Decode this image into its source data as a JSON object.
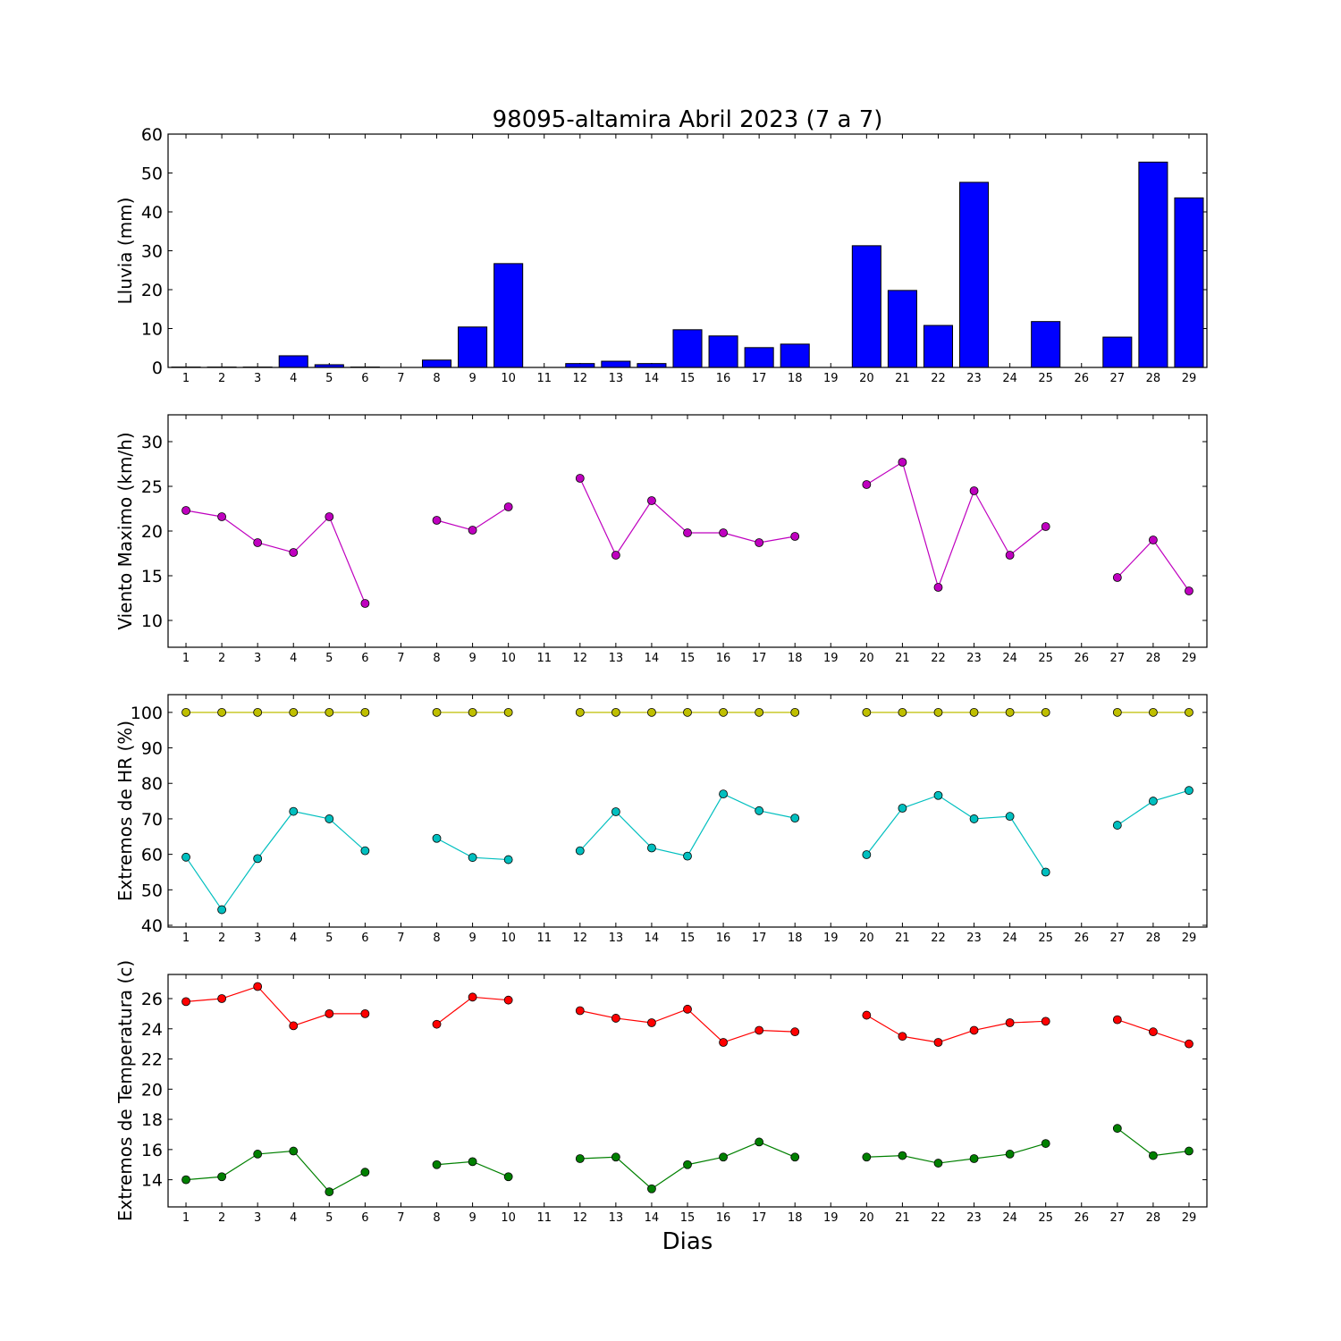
{
  "figure": {
    "title": "98095-altamira Abril 2023  (7 a 7)",
    "xlabel": "Dias"
  },
  "chart_data": [
    {
      "type": "bar",
      "ylabel": "Lluvia (mm)",
      "ylim": [
        0,
        60
      ],
      "yticks": [
        0,
        10,
        20,
        30,
        40,
        50,
        60
      ],
      "xlim": [
        0.5,
        29.5
      ],
      "xticks": [
        1,
        2,
        3,
        4,
        5,
        6,
        7,
        8,
        9,
        10,
        11,
        12,
        13,
        14,
        15,
        16,
        17,
        18,
        19,
        20,
        21,
        22,
        23,
        24,
        25,
        26,
        27,
        28,
        29
      ],
      "x": [
        1,
        2,
        3,
        4,
        5,
        6,
        7,
        8,
        9,
        10,
        11,
        12,
        13,
        14,
        15,
        16,
        17,
        18,
        19,
        20,
        21,
        22,
        23,
        24,
        25,
        26,
        27,
        28,
        29
      ],
      "series": [
        {
          "color": "#0000ff",
          "values": [
            0.1,
            0.1,
            0.1,
            3.0,
            0.7,
            0.1,
            0,
            1.9,
            10.4,
            26.7,
            0,
            1.0,
            1.6,
            1.0,
            9.7,
            8.1,
            5.1,
            6.0,
            0,
            31.3,
            19.8,
            10.8,
            47.6,
            0,
            11.8,
            0,
            7.8,
            52.8,
            43.6
          ]
        }
      ]
    },
    {
      "type": "line",
      "ylabel": "Viento Maximo (km/h)",
      "ylim": [
        7,
        33
      ],
      "yticks": [
        10,
        15,
        20,
        25,
        30
      ],
      "xlim": [
        0.5,
        29.5
      ],
      "xticks": [
        1,
        2,
        3,
        4,
        5,
        6,
        7,
        8,
        9,
        10,
        11,
        12,
        13,
        14,
        15,
        16,
        17,
        18,
        19,
        20,
        21,
        22,
        23,
        24,
        25,
        26,
        27,
        28,
        29
      ],
      "x": [
        1,
        2,
        3,
        4,
        5,
        6,
        7,
        8,
        9,
        10,
        11,
        12,
        13,
        14,
        15,
        16,
        17,
        18,
        19,
        20,
        21,
        22,
        23,
        24,
        25,
        26,
        27,
        28,
        29
      ],
      "series": [
        {
          "color": "#bf00bf",
          "values": [
            22.3,
            21.6,
            18.7,
            17.6,
            21.6,
            11.9,
            null,
            21.2,
            20.1,
            22.7,
            null,
            25.9,
            17.3,
            23.4,
            19.8,
            19.8,
            18.7,
            19.4,
            null,
            25.2,
            27.7,
            13.7,
            24.5,
            17.3,
            20.5,
            null,
            14.8,
            19.0,
            13.3
          ]
        }
      ]
    },
    {
      "type": "line",
      "ylabel": "Extremos de HR (%)",
      "ylim": [
        39.5,
        105
      ],
      "yticks": [
        40,
        50,
        60,
        70,
        80,
        90,
        100
      ],
      "xlim": [
        0.5,
        29.5
      ],
      "xticks": [
        1,
        2,
        3,
        4,
        5,
        6,
        7,
        8,
        9,
        10,
        11,
        12,
        13,
        14,
        15,
        16,
        17,
        18,
        19,
        20,
        21,
        22,
        23,
        24,
        25,
        26,
        27,
        28,
        29
      ],
      "x": [
        1,
        2,
        3,
        4,
        5,
        6,
        7,
        8,
        9,
        10,
        11,
        12,
        13,
        14,
        15,
        16,
        17,
        18,
        19,
        20,
        21,
        22,
        23,
        24,
        25,
        26,
        27,
        28,
        29
      ],
      "series": [
        {
          "color": "#bfbf00",
          "values": [
            100,
            100,
            100,
            100,
            100,
            100,
            null,
            100,
            100,
            100,
            null,
            100,
            100,
            100,
            100,
            100,
            100,
            100,
            null,
            100,
            100,
            100,
            100,
            100,
            100,
            null,
            100,
            100,
            100
          ]
        },
        {
          "color": "#00bfbf",
          "values": [
            59.2,
            44.4,
            58.8,
            72.1,
            70.0,
            61.0,
            null,
            64.5,
            59.1,
            58.5,
            null,
            61.0,
            72.0,
            61.8,
            59.5,
            77.0,
            72.3,
            70.2,
            null,
            59.9,
            73.0,
            76.6,
            70.0,
            70.7,
            55.0,
            null,
            68.2,
            75.0,
            78.0
          ]
        }
      ]
    },
    {
      "type": "line",
      "ylabel": "Extremos de Temperatura (c)",
      "ylim": [
        12.2,
        27.6
      ],
      "yticks": [
        14,
        16,
        18,
        20,
        22,
        24,
        26
      ],
      "xlim": [
        0.5,
        29.5
      ],
      "xticks": [
        1,
        2,
        3,
        4,
        5,
        6,
        7,
        8,
        9,
        10,
        11,
        12,
        13,
        14,
        15,
        16,
        17,
        18,
        19,
        20,
        21,
        22,
        23,
        24,
        25,
        26,
        27,
        28,
        29
      ],
      "x": [
        1,
        2,
        3,
        4,
        5,
        6,
        7,
        8,
        9,
        10,
        11,
        12,
        13,
        14,
        15,
        16,
        17,
        18,
        19,
        20,
        21,
        22,
        23,
        24,
        25,
        26,
        27,
        28,
        29
      ],
      "series": [
        {
          "color": "#ff0000",
          "values": [
            25.8,
            26.0,
            26.8,
            24.2,
            25.0,
            25.0,
            null,
            24.3,
            26.1,
            25.9,
            null,
            25.2,
            24.7,
            24.4,
            25.3,
            23.1,
            23.9,
            23.8,
            null,
            24.9,
            23.5,
            23.1,
            23.9,
            24.4,
            24.5,
            null,
            24.6,
            23.8,
            23.0
          ]
        },
        {
          "color": "#008000",
          "values": [
            14.0,
            14.2,
            15.7,
            15.9,
            13.2,
            14.5,
            null,
            15.0,
            15.2,
            14.2,
            null,
            15.4,
            15.5,
            13.4,
            15.0,
            15.5,
            16.5,
            15.5,
            null,
            15.5,
            15.6,
            15.1,
            15.4,
            15.7,
            16.4,
            null,
            17.4,
            15.6,
            15.9
          ]
        }
      ]
    }
  ]
}
